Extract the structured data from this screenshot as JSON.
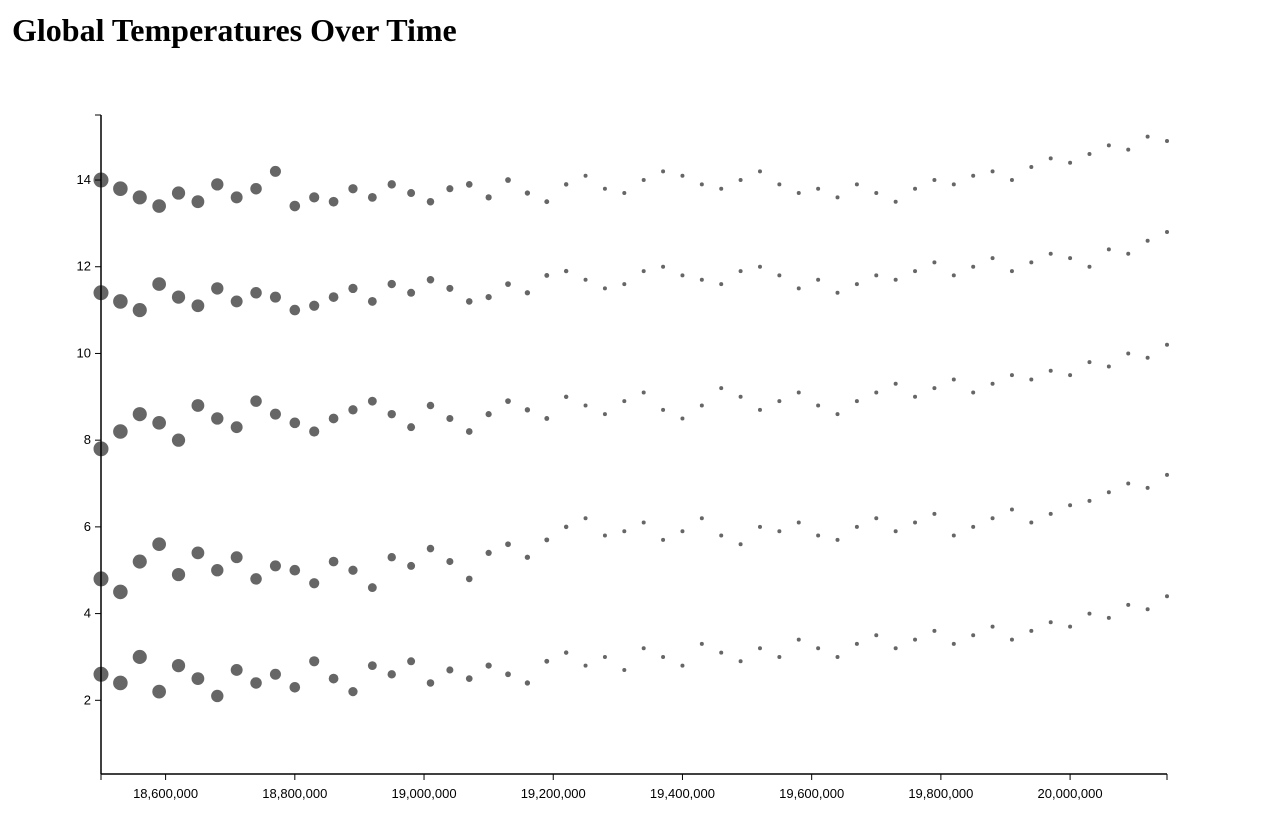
{
  "page": {
    "title": "Global Temperatures Over Time"
  },
  "chart_data": {
    "type": "scatter",
    "title": "Global Temperatures Over Time",
    "xlabel": "",
    "ylabel": "",
    "xlim": [
      18500000,
      20150000
    ],
    "ylim": [
      0.3,
      15.5
    ],
    "x_ticks": [
      {
        "value": 18600000,
        "label": "18,600,000"
      },
      {
        "value": 18800000,
        "label": "18,800,000"
      },
      {
        "value": 19000000,
        "label": "19,000,000"
      },
      {
        "value": 19200000,
        "label": "19,200,000"
      },
      {
        "value": 19400000,
        "label": "19,400,000"
      },
      {
        "value": 19600000,
        "label": "19,600,000"
      },
      {
        "value": 19800000,
        "label": "19,800,000"
      },
      {
        "value": 20000000,
        "label": "20,000,000"
      }
    ],
    "y_ticks": [
      {
        "value": 2,
        "label": "2"
      },
      {
        "value": 4,
        "label": "4"
      },
      {
        "value": 6,
        "label": "6"
      },
      {
        "value": 8,
        "label": "8"
      },
      {
        "value": 10,
        "label": "10"
      },
      {
        "value": 12,
        "label": "12"
      },
      {
        "value": 14,
        "label": "14"
      }
    ],
    "grid": false,
    "legend": "none",
    "point_color": "#333333",
    "point_opacity": 0.75,
    "marker_size_encodes": "uncertainty (larger points earlier in series)",
    "series": [
      {
        "x": [
          18500000,
          18530000,
          18560000,
          18590000,
          18620000,
          18650000,
          18680000,
          18710000,
          18740000,
          18770000,
          18800000,
          18830000,
          18860000,
          18890000,
          18920000,
          18950000,
          18980000,
          19010000,
          19040000,
          19070000,
          19100000,
          19130000,
          19160000,
          19190000,
          19220000,
          19250000,
          19280000,
          19310000,
          19340000,
          19370000,
          19400000,
          19430000,
          19460000,
          19490000,
          19520000,
          19550000,
          19580000,
          19610000,
          19640000,
          19670000,
          19700000,
          19730000,
          19760000,
          19790000,
          19820000,
          19850000,
          19880000,
          19910000,
          19940000,
          19970000,
          20000000,
          20030000,
          20060000,
          20090000,
          20120000,
          20150000
        ],
        "y": [
          14.0,
          13.8,
          13.6,
          13.4,
          13.7,
          13.5,
          13.9,
          13.6,
          13.8,
          14.2,
          13.4,
          13.6,
          13.5,
          13.8,
          13.6,
          13.9,
          13.7,
          13.5,
          13.8,
          13.9,
          13.6,
          14.0,
          13.7,
          13.5,
          13.9,
          14.1,
          13.8,
          13.7,
          14.0,
          14.2,
          14.1,
          13.9,
          13.8,
          14.0,
          14.2,
          13.9,
          13.7,
          13.8,
          13.6,
          13.9,
          13.7,
          13.5,
          13.8,
          14.0,
          13.9,
          14.1,
          14.2,
          14.0,
          14.3,
          14.5,
          14.4,
          14.6,
          14.8,
          14.7,
          15.0,
          14.9
        ]
      },
      {
        "x": [
          18500000,
          18530000,
          18560000,
          18590000,
          18620000,
          18650000,
          18680000,
          18710000,
          18740000,
          18770000,
          18800000,
          18830000,
          18860000,
          18890000,
          18920000,
          18950000,
          18980000,
          19010000,
          19040000,
          19070000,
          19100000,
          19130000,
          19160000,
          19190000,
          19220000,
          19250000,
          19280000,
          19310000,
          19340000,
          19370000,
          19400000,
          19430000,
          19460000,
          19490000,
          19520000,
          19550000,
          19580000,
          19610000,
          19640000,
          19670000,
          19700000,
          19730000,
          19760000,
          19790000,
          19820000,
          19850000,
          19880000,
          19910000,
          19940000,
          19970000,
          20000000,
          20030000,
          20060000,
          20090000,
          20120000,
          20150000
        ],
        "y": [
          11.4,
          11.2,
          11.0,
          11.6,
          11.3,
          11.1,
          11.5,
          11.2,
          11.4,
          11.3,
          11.0,
          11.1,
          11.3,
          11.5,
          11.2,
          11.6,
          11.4,
          11.7,
          11.5,
          11.2,
          11.3,
          11.6,
          11.4,
          11.8,
          11.9,
          11.7,
          11.5,
          11.6,
          11.9,
          12.0,
          11.8,
          11.7,
          11.6,
          11.9,
          12.0,
          11.8,
          11.5,
          11.7,
          11.4,
          11.6,
          11.8,
          11.7,
          11.9,
          12.1,
          11.8,
          12.0,
          12.2,
          11.9,
          12.1,
          12.3,
          12.2,
          12.0,
          12.4,
          12.3,
          12.6,
          12.8
        ]
      },
      {
        "x": [
          18500000,
          18530000,
          18560000,
          18590000,
          18620000,
          18650000,
          18680000,
          18710000,
          18740000,
          18770000,
          18800000,
          18830000,
          18860000,
          18890000,
          18920000,
          18950000,
          18980000,
          19010000,
          19040000,
          19070000,
          19100000,
          19130000,
          19160000,
          19190000,
          19220000,
          19250000,
          19280000,
          19310000,
          19340000,
          19370000,
          19400000,
          19430000,
          19460000,
          19490000,
          19520000,
          19550000,
          19580000,
          19610000,
          19640000,
          19670000,
          19700000,
          19730000,
          19760000,
          19790000,
          19820000,
          19850000,
          19880000,
          19910000,
          19940000,
          19970000,
          20000000,
          20030000,
          20060000,
          20090000,
          20120000,
          20150000
        ],
        "y": [
          7.8,
          8.2,
          8.6,
          8.4,
          8.0,
          8.8,
          8.5,
          8.3,
          8.9,
          8.6,
          8.4,
          8.2,
          8.5,
          8.7,
          8.9,
          8.6,
          8.3,
          8.8,
          8.5,
          8.2,
          8.6,
          8.9,
          8.7,
          8.5,
          9.0,
          8.8,
          8.6,
          8.9,
          9.1,
          8.7,
          8.5,
          8.8,
          9.2,
          9.0,
          8.7,
          8.9,
          9.1,
          8.8,
          8.6,
          8.9,
          9.1,
          9.3,
          9.0,
          9.2,
          9.4,
          9.1,
          9.3,
          9.5,
          9.4,
          9.6,
          9.5,
          9.8,
          9.7,
          10.0,
          9.9,
          10.2
        ]
      },
      {
        "x": [
          18500000,
          18530000,
          18560000,
          18590000,
          18620000,
          18650000,
          18680000,
          18710000,
          18740000,
          18770000,
          18800000,
          18830000,
          18860000,
          18890000,
          18920000,
          18950000,
          18980000,
          19010000,
          19040000,
          19070000,
          19100000,
          19130000,
          19160000,
          19190000,
          19220000,
          19250000,
          19280000,
          19310000,
          19340000,
          19370000,
          19400000,
          19430000,
          19460000,
          19490000,
          19520000,
          19550000,
          19580000,
          19610000,
          19640000,
          19670000,
          19700000,
          19730000,
          19760000,
          19790000,
          19820000,
          19850000,
          19880000,
          19910000,
          19940000,
          19970000,
          20000000,
          20030000,
          20060000,
          20090000,
          20120000,
          20150000
        ],
        "y": [
          4.8,
          4.5,
          5.2,
          5.6,
          4.9,
          5.4,
          5.0,
          5.3,
          4.8,
          5.1,
          5.0,
          4.7,
          5.2,
          5.0,
          4.6,
          5.3,
          5.1,
          5.5,
          5.2,
          4.8,
          5.4,
          5.6,
          5.3,
          5.7,
          6.0,
          6.2,
          5.8,
          5.9,
          6.1,
          5.7,
          5.9,
          6.2,
          5.8,
          5.6,
          6.0,
          5.9,
          6.1,
          5.8,
          5.7,
          6.0,
          6.2,
          5.9,
          6.1,
          6.3,
          5.8,
          6.0,
          6.2,
          6.4,
          6.1,
          6.3,
          6.5,
          6.6,
          6.8,
          7.0,
          6.9,
          7.2
        ]
      },
      {
        "x": [
          18500000,
          18530000,
          18560000,
          18590000,
          18620000,
          18650000,
          18680000,
          18710000,
          18740000,
          18770000,
          18800000,
          18830000,
          18860000,
          18890000,
          18920000,
          18950000,
          18980000,
          19010000,
          19040000,
          19070000,
          19100000,
          19130000,
          19160000,
          19190000,
          19220000,
          19250000,
          19280000,
          19310000,
          19340000,
          19370000,
          19400000,
          19430000,
          19460000,
          19490000,
          19520000,
          19550000,
          19580000,
          19610000,
          19640000,
          19670000,
          19700000,
          19730000,
          19760000,
          19790000,
          19820000,
          19850000,
          19880000,
          19910000,
          19940000,
          19970000,
          20000000,
          20030000,
          20060000,
          20090000,
          20120000,
          20150000
        ],
        "y": [
          2.6,
          2.4,
          3.0,
          2.2,
          2.8,
          2.5,
          2.1,
          2.7,
          2.4,
          2.6,
          2.3,
          2.9,
          2.5,
          2.2,
          2.8,
          2.6,
          2.9,
          2.4,
          2.7,
          2.5,
          2.8,
          2.6,
          2.4,
          2.9,
          3.1,
          2.8,
          3.0,
          2.7,
          3.2,
          3.0,
          2.8,
          3.3,
          3.1,
          2.9,
          3.2,
          3.0,
          3.4,
          3.2,
          3.0,
          3.3,
          3.5,
          3.2,
          3.4,
          3.6,
          3.3,
          3.5,
          3.7,
          3.4,
          3.6,
          3.8,
          3.7,
          4.0,
          3.9,
          4.2,
          4.1,
          4.4
        ]
      }
    ]
  }
}
